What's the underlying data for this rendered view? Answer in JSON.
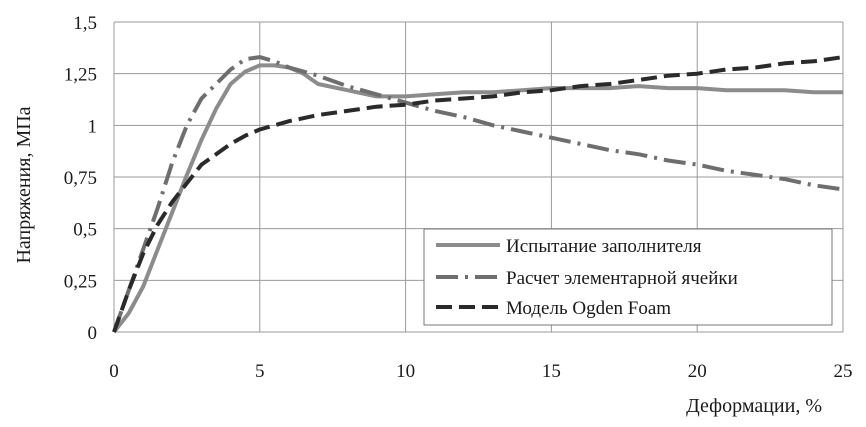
{
  "chart_data": {
    "type": "line",
    "xlabel": "Деформации, %",
    "ylabel": "Напряжения, МПа",
    "xlim": [
      0,
      25
    ],
    "ylim": [
      0,
      1.5
    ],
    "x_ticks": [
      "0",
      "5",
      "10",
      "15",
      "20",
      "25"
    ],
    "y_ticks": [
      "0",
      "0,25",
      "0,5",
      "0,75",
      "1",
      "1,25",
      "1,5"
    ],
    "grid": true,
    "legend_position": "bottom-right",
    "series": [
      {
        "name": "Испытание заполнителя",
        "color": "#8c8c8c",
        "style": "solid",
        "points": [
          [
            0,
            0
          ],
          [
            0.5,
            0.09
          ],
          [
            1,
            0.22
          ],
          [
            1.5,
            0.4
          ],
          [
            2,
            0.58
          ],
          [
            2.5,
            0.76
          ],
          [
            3,
            0.93
          ],
          [
            3.5,
            1.08
          ],
          [
            4,
            1.2
          ],
          [
            4.5,
            1.26
          ],
          [
            5,
            1.29
          ],
          [
            5.5,
            1.29
          ],
          [
            6,
            1.28
          ],
          [
            6.5,
            1.25
          ],
          [
            7,
            1.2
          ],
          [
            8,
            1.17
          ],
          [
            9,
            1.14
          ],
          [
            10,
            1.14
          ],
          [
            11,
            1.15
          ],
          [
            12,
            1.16
          ],
          [
            13,
            1.16
          ],
          [
            14,
            1.17
          ],
          [
            15,
            1.18
          ],
          [
            16,
            1.18
          ],
          [
            17,
            1.18
          ],
          [
            18,
            1.19
          ],
          [
            19,
            1.18
          ],
          [
            20,
            1.18
          ],
          [
            21,
            1.17
          ],
          [
            22,
            1.17
          ],
          [
            23,
            1.17
          ],
          [
            24,
            1.16
          ],
          [
            25,
            1.16
          ]
        ]
      },
      {
        "name": "Расчет элементарной ячейки",
        "color": "#6e6e6e",
        "style": "dash-dot",
        "points": [
          [
            0,
            0
          ],
          [
            0.5,
            0.2
          ],
          [
            1,
            0.4
          ],
          [
            1.5,
            0.6
          ],
          [
            2,
            0.82
          ],
          [
            2.5,
            1.0
          ],
          [
            3,
            1.13
          ],
          [
            3.5,
            1.2
          ],
          [
            4,
            1.27
          ],
          [
            4.5,
            1.32
          ],
          [
            5,
            1.33
          ],
          [
            5.5,
            1.31
          ],
          [
            6,
            1.28
          ],
          [
            6.5,
            1.26
          ],
          [
            7,
            1.24
          ],
          [
            8,
            1.19
          ],
          [
            9,
            1.15
          ],
          [
            10,
            1.11
          ],
          [
            11,
            1.07
          ],
          [
            12,
            1.04
          ],
          [
            13,
            1.0
          ],
          [
            14,
            0.97
          ],
          [
            15,
            0.94
          ],
          [
            16,
            0.91
          ],
          [
            17,
            0.88
          ],
          [
            18,
            0.86
          ],
          [
            19,
            0.83
          ],
          [
            20,
            0.81
          ],
          [
            21,
            0.78
          ],
          [
            22,
            0.76
          ],
          [
            23,
            0.74
          ],
          [
            24,
            0.71
          ],
          [
            25,
            0.69
          ]
        ]
      },
      {
        "name": "Модель Ogden Foam",
        "color": "#2a2a2a",
        "style": "dashed",
        "points": [
          [
            0,
            0
          ],
          [
            0.5,
            0.2
          ],
          [
            1,
            0.38
          ],
          [
            1.5,
            0.52
          ],
          [
            2,
            0.63
          ],
          [
            2.5,
            0.72
          ],
          [
            3,
            0.81
          ],
          [
            3.5,
            0.86
          ],
          [
            4,
            0.91
          ],
          [
            4.5,
            0.95
          ],
          [
            5,
            0.98
          ],
          [
            6,
            1.02
          ],
          [
            7,
            1.05
          ],
          [
            8,
            1.07
          ],
          [
            9,
            1.09
          ],
          [
            10,
            1.1
          ],
          [
            11,
            1.12
          ],
          [
            12,
            1.13
          ],
          [
            13,
            1.14
          ],
          [
            14,
            1.16
          ],
          [
            15,
            1.17
          ],
          [
            16,
            1.19
          ],
          [
            17,
            1.2
          ],
          [
            18,
            1.22
          ],
          [
            19,
            1.24
          ],
          [
            20,
            1.25
          ],
          [
            21,
            1.27
          ],
          [
            22,
            1.28
          ],
          [
            23,
            1.3
          ],
          [
            24,
            1.31
          ],
          [
            25,
            1.33
          ]
        ]
      }
    ]
  }
}
